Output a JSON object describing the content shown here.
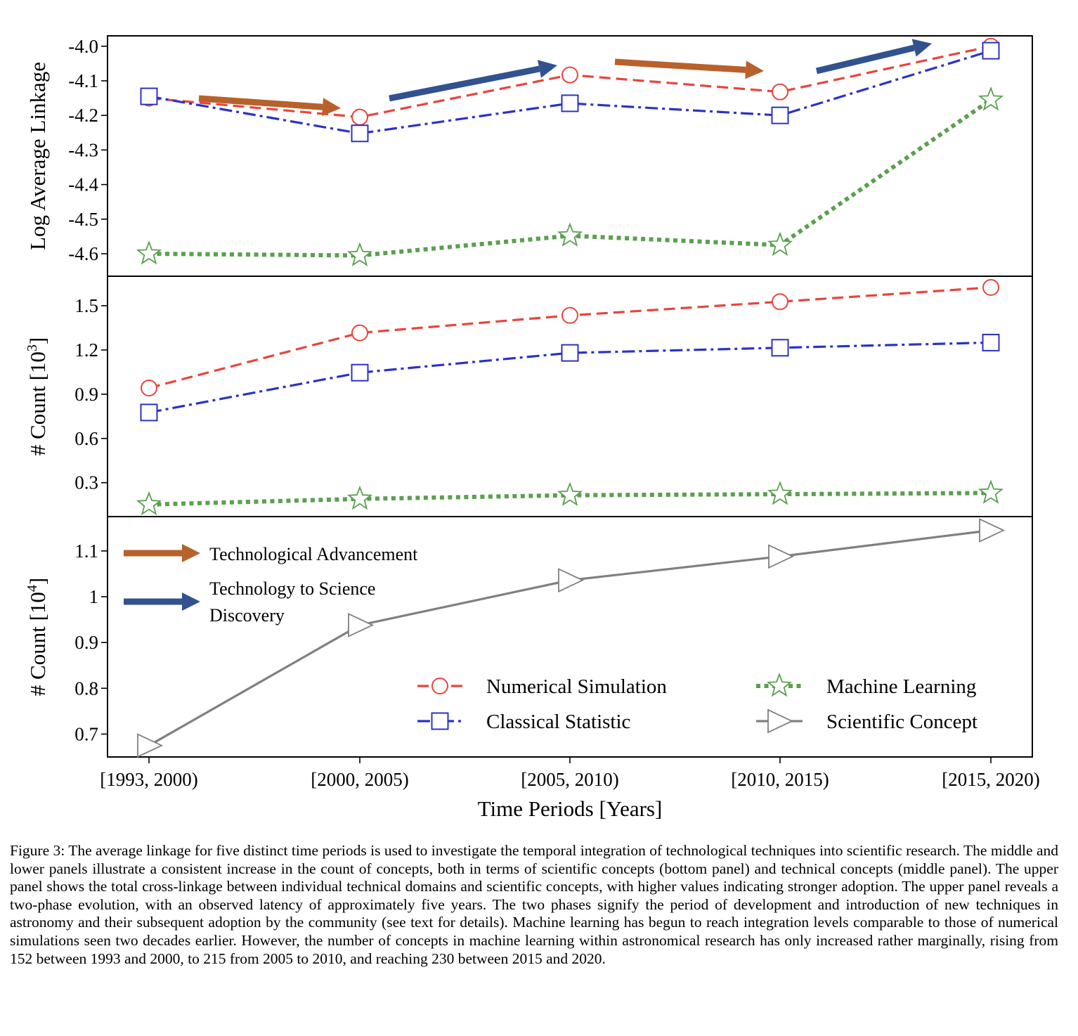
{
  "chart_data": {
    "type": "line",
    "categories": [
      "[1993, 2000)",
      "[2000, 2005)",
      "[2005, 2010)",
      "[2010, 2015)",
      "[2015, 2020)"
    ],
    "xlabel": "Time Periods [Years]",
    "legend": {
      "placement": "bottom-right of bottom panel",
      "entries": [
        "Numerical Simulation",
        "Machine Learning",
        "Classical Statistic",
        "Scientific Concept"
      ]
    },
    "colors": {
      "numerical_simulation": "#e8453c",
      "classical_statistic": "#2b32c8",
      "machine_learning": "#5aa04e",
      "scientific_concept": "#808080",
      "tech_arrow": "#b8612c",
      "science_arrow": "#32528f"
    },
    "annotations": {
      "tech_advancement": "Technological Advancement",
      "tech_to_science_line1": "Technology to Science",
      "tech_to_science_line2": "Discovery"
    },
    "panels": [
      {
        "id": "top",
        "ylabel": "Log Average Linkage",
        "ylim": [
          -4.665,
          -3.97
        ],
        "yticks": [
          -4.6,
          -4.5,
          -4.4,
          -4.3,
          -4.2,
          -4.1,
          -4.0
        ],
        "ytick_labels": [
          "-4.6",
          "-4.5",
          "-4.4",
          "-4.3",
          "-4.2",
          "-4.1",
          "-4.0"
        ],
        "series": [
          {
            "name": "Numerical Simulation",
            "values": [
              -4.15,
              -4.205,
              -4.083,
              -4.132,
              -4.0
            ]
          },
          {
            "name": "Classical Statistic",
            "values": [
              -4.145,
              -4.252,
              -4.165,
              -4.2,
              -4.013
            ]
          },
          {
            "name": "Machine Learning",
            "values": [
              -4.6,
              -4.605,
              -4.548,
              -4.575,
              -4.155
            ]
          }
        ]
      },
      {
        "id": "middle",
        "ylabel": "# Count [10³]",
        "ylim": [
          0.07,
          1.7
        ],
        "yticks": [
          0.3,
          0.6,
          0.9,
          1.2,
          1.5
        ],
        "ytick_labels": [
          "0.3",
          "0.6",
          "0.9",
          "1.2",
          "1.5"
        ],
        "series": [
          {
            "name": "Numerical Simulation",
            "values": [
              0.942,
              1.316,
              1.434,
              1.527,
              1.624
            ]
          },
          {
            "name": "Classical Statistic",
            "values": [
              0.776,
              1.046,
              1.18,
              1.215,
              1.25
            ]
          },
          {
            "name": "Machine Learning",
            "values": [
              0.152,
              0.19,
              0.215,
              0.222,
              0.23
            ]
          }
        ]
      },
      {
        "id": "bottom",
        "ylabel": "# Count [10⁴]",
        "ylim": [
          0.65,
          1.175
        ],
        "yticks": [
          0.7,
          0.8,
          0.9,
          1.0,
          1.1
        ],
        "ytick_labels": [
          "0.7",
          "0.8",
          "0.9",
          "1",
          "1.1"
        ],
        "series": [
          {
            "name": "Scientific Concept",
            "values": [
              0.675,
              0.938,
              1.036,
              1.088,
              1.145
            ]
          }
        ]
      }
    ]
  },
  "caption": "Figure 3: The average linkage for five distinct time periods is used to investigate the temporal integration of technological techniques into scientific research. The middle and lower panels illustrate a consistent increase in the count of concepts, both in terms of scientific concepts (bottom panel) and technical concepts (middle panel). The upper panel shows the total cross-linkage between individual technical domains and scientific concepts, with higher values indicating stronger adoption. The upper panel reveals a two-phase evolution, with an observed latency of approximately five years. The two phases signify the period of development and introduction of new techniques in astronomy and their subsequent adoption by the community (see text for details). Machine learning has begun to reach integration levels comparable to those of numerical simulations seen two decades earlier. However, the number of concepts in machine learning within astronomical research has only increased rather marginally, rising from 152 between 1993 and 2000, to 215 from 2005 to 2010, and reaching 230 between 2015 and 2020."
}
